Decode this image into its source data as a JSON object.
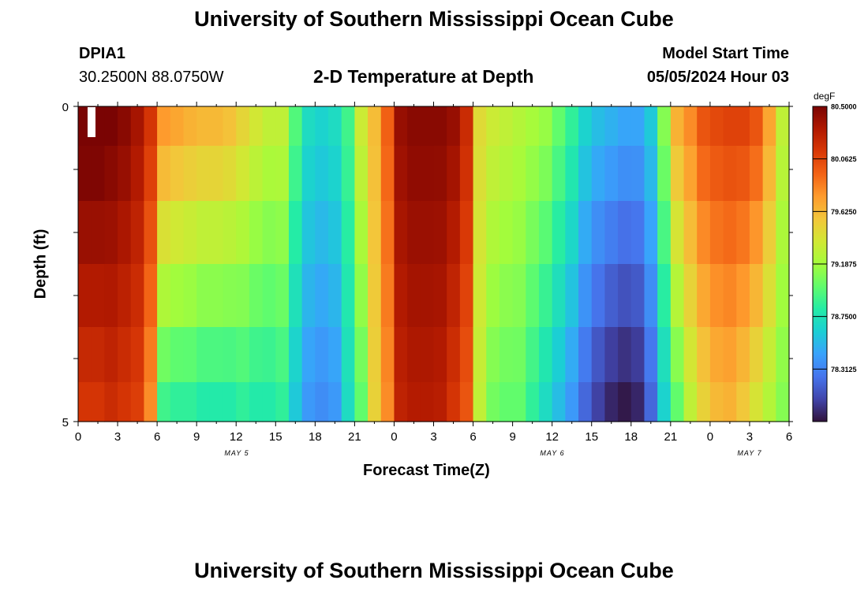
{
  "header": {
    "title": "University of Southern Mississippi Ocean Cube",
    "station_id": "DPIA1",
    "station_coords": "30.2500N  88.0750W",
    "plot_title": "2-D Temperature at Depth",
    "model_start_label": "Model Start Time",
    "model_start_value": "05/05/2024 Hour 03"
  },
  "footer": {
    "title": "University of Southern Mississippi Ocean Cube"
  },
  "chart_data": {
    "type": "heatmap",
    "title": "2-D Temperature at Depth",
    "xlabel": "Forecast Time(Z)",
    "ylabel": "Depth (ft)",
    "x_unit": "hours since 05/05 00Z",
    "x_range": [
      0,
      54
    ],
    "y_range": [
      0,
      5
    ],
    "y_ticks": [
      "0",
      "5"
    ],
    "x_ticks": [
      "0",
      "3",
      "6",
      "9",
      "12",
      "15",
      "18",
      "21",
      "0",
      "3",
      "6",
      "9",
      "12",
      "15",
      "18",
      "21",
      "0",
      "3",
      "6"
    ],
    "date_labels": [
      "MAY 5",
      "MAY 6",
      "MAY 7"
    ],
    "colorbar": {
      "unit": "degF",
      "min": 77.875,
      "max": 80.5,
      "ticks": [
        "80.5000",
        "80.0625",
        "79.6250",
        "79.1875",
        "78.7500",
        "78.3125"
      ],
      "colors": [
        "#30123b",
        "#4145ab",
        "#4675ed",
        "#39a2fc",
        "#1bcfd4",
        "#24eca6",
        "#61fc6c",
        "#a4fc3b",
        "#d1e834",
        "#f3c63a",
        "#fe9b2d",
        "#f36315",
        "#d93806",
        "#b11901",
        "#7a0403"
      ]
    },
    "depth_levels": [
      0.25,
      1.0,
      2.0,
      3.0,
      4.0,
      4.75
    ],
    "hours": [
      0,
      1,
      2,
      3,
      4,
      5,
      6,
      7,
      8,
      9,
      10,
      11,
      12,
      13,
      14,
      15,
      16,
      17,
      18,
      19,
      20,
      21,
      22,
      23,
      24,
      25,
      26,
      27,
      28,
      29,
      30,
      31,
      32,
      33,
      34,
      35,
      36,
      37,
      38,
      39,
      40,
      41,
      42,
      43,
      44,
      45,
      46,
      47,
      48,
      49,
      50,
      51,
      52,
      53
    ],
    "temperature_surface": [
      80.55,
      80.55,
      80.5,
      80.45,
      80.35,
      80.15,
      79.75,
      79.7,
      79.65,
      79.62,
      79.62,
      79.58,
      79.48,
      79.38,
      79.3,
      79.3,
      78.95,
      78.7,
      78.65,
      78.7,
      78.9,
      79.35,
      79.6,
      79.95,
      80.4,
      80.45,
      80.45,
      80.45,
      80.4,
      80.2,
      79.45,
      79.35,
      79.3,
      79.25,
      79.2,
      79.15,
      79.0,
      78.85,
      78.65,
      78.55,
      78.5,
      78.45,
      78.45,
      78.6,
      79.1,
      79.65,
      79.8,
      80.0,
      80.05,
      80.08,
      80.08,
      80.0,
      79.7,
      79.3
    ],
    "temperature_bottom": [
      80.15,
      80.15,
      80.2,
      80.15,
      80.1,
      79.8,
      78.9,
      78.85,
      78.85,
      78.8,
      78.8,
      78.8,
      78.85,
      78.8,
      78.8,
      78.85,
      78.6,
      78.4,
      78.35,
      78.4,
      78.7,
      79.0,
      79.5,
      79.8,
      80.25,
      80.3,
      80.3,
      80.28,
      80.15,
      80.0,
      79.3,
      79.05,
      79.0,
      79.0,
      78.85,
      78.7,
      78.55,
      78.4,
      78.2,
      78.05,
      77.95,
      77.9,
      77.95,
      78.2,
      78.65,
      79.0,
      79.3,
      79.5,
      79.62,
      79.65,
      79.55,
      79.4,
      79.25,
      79.1
    ]
  }
}
